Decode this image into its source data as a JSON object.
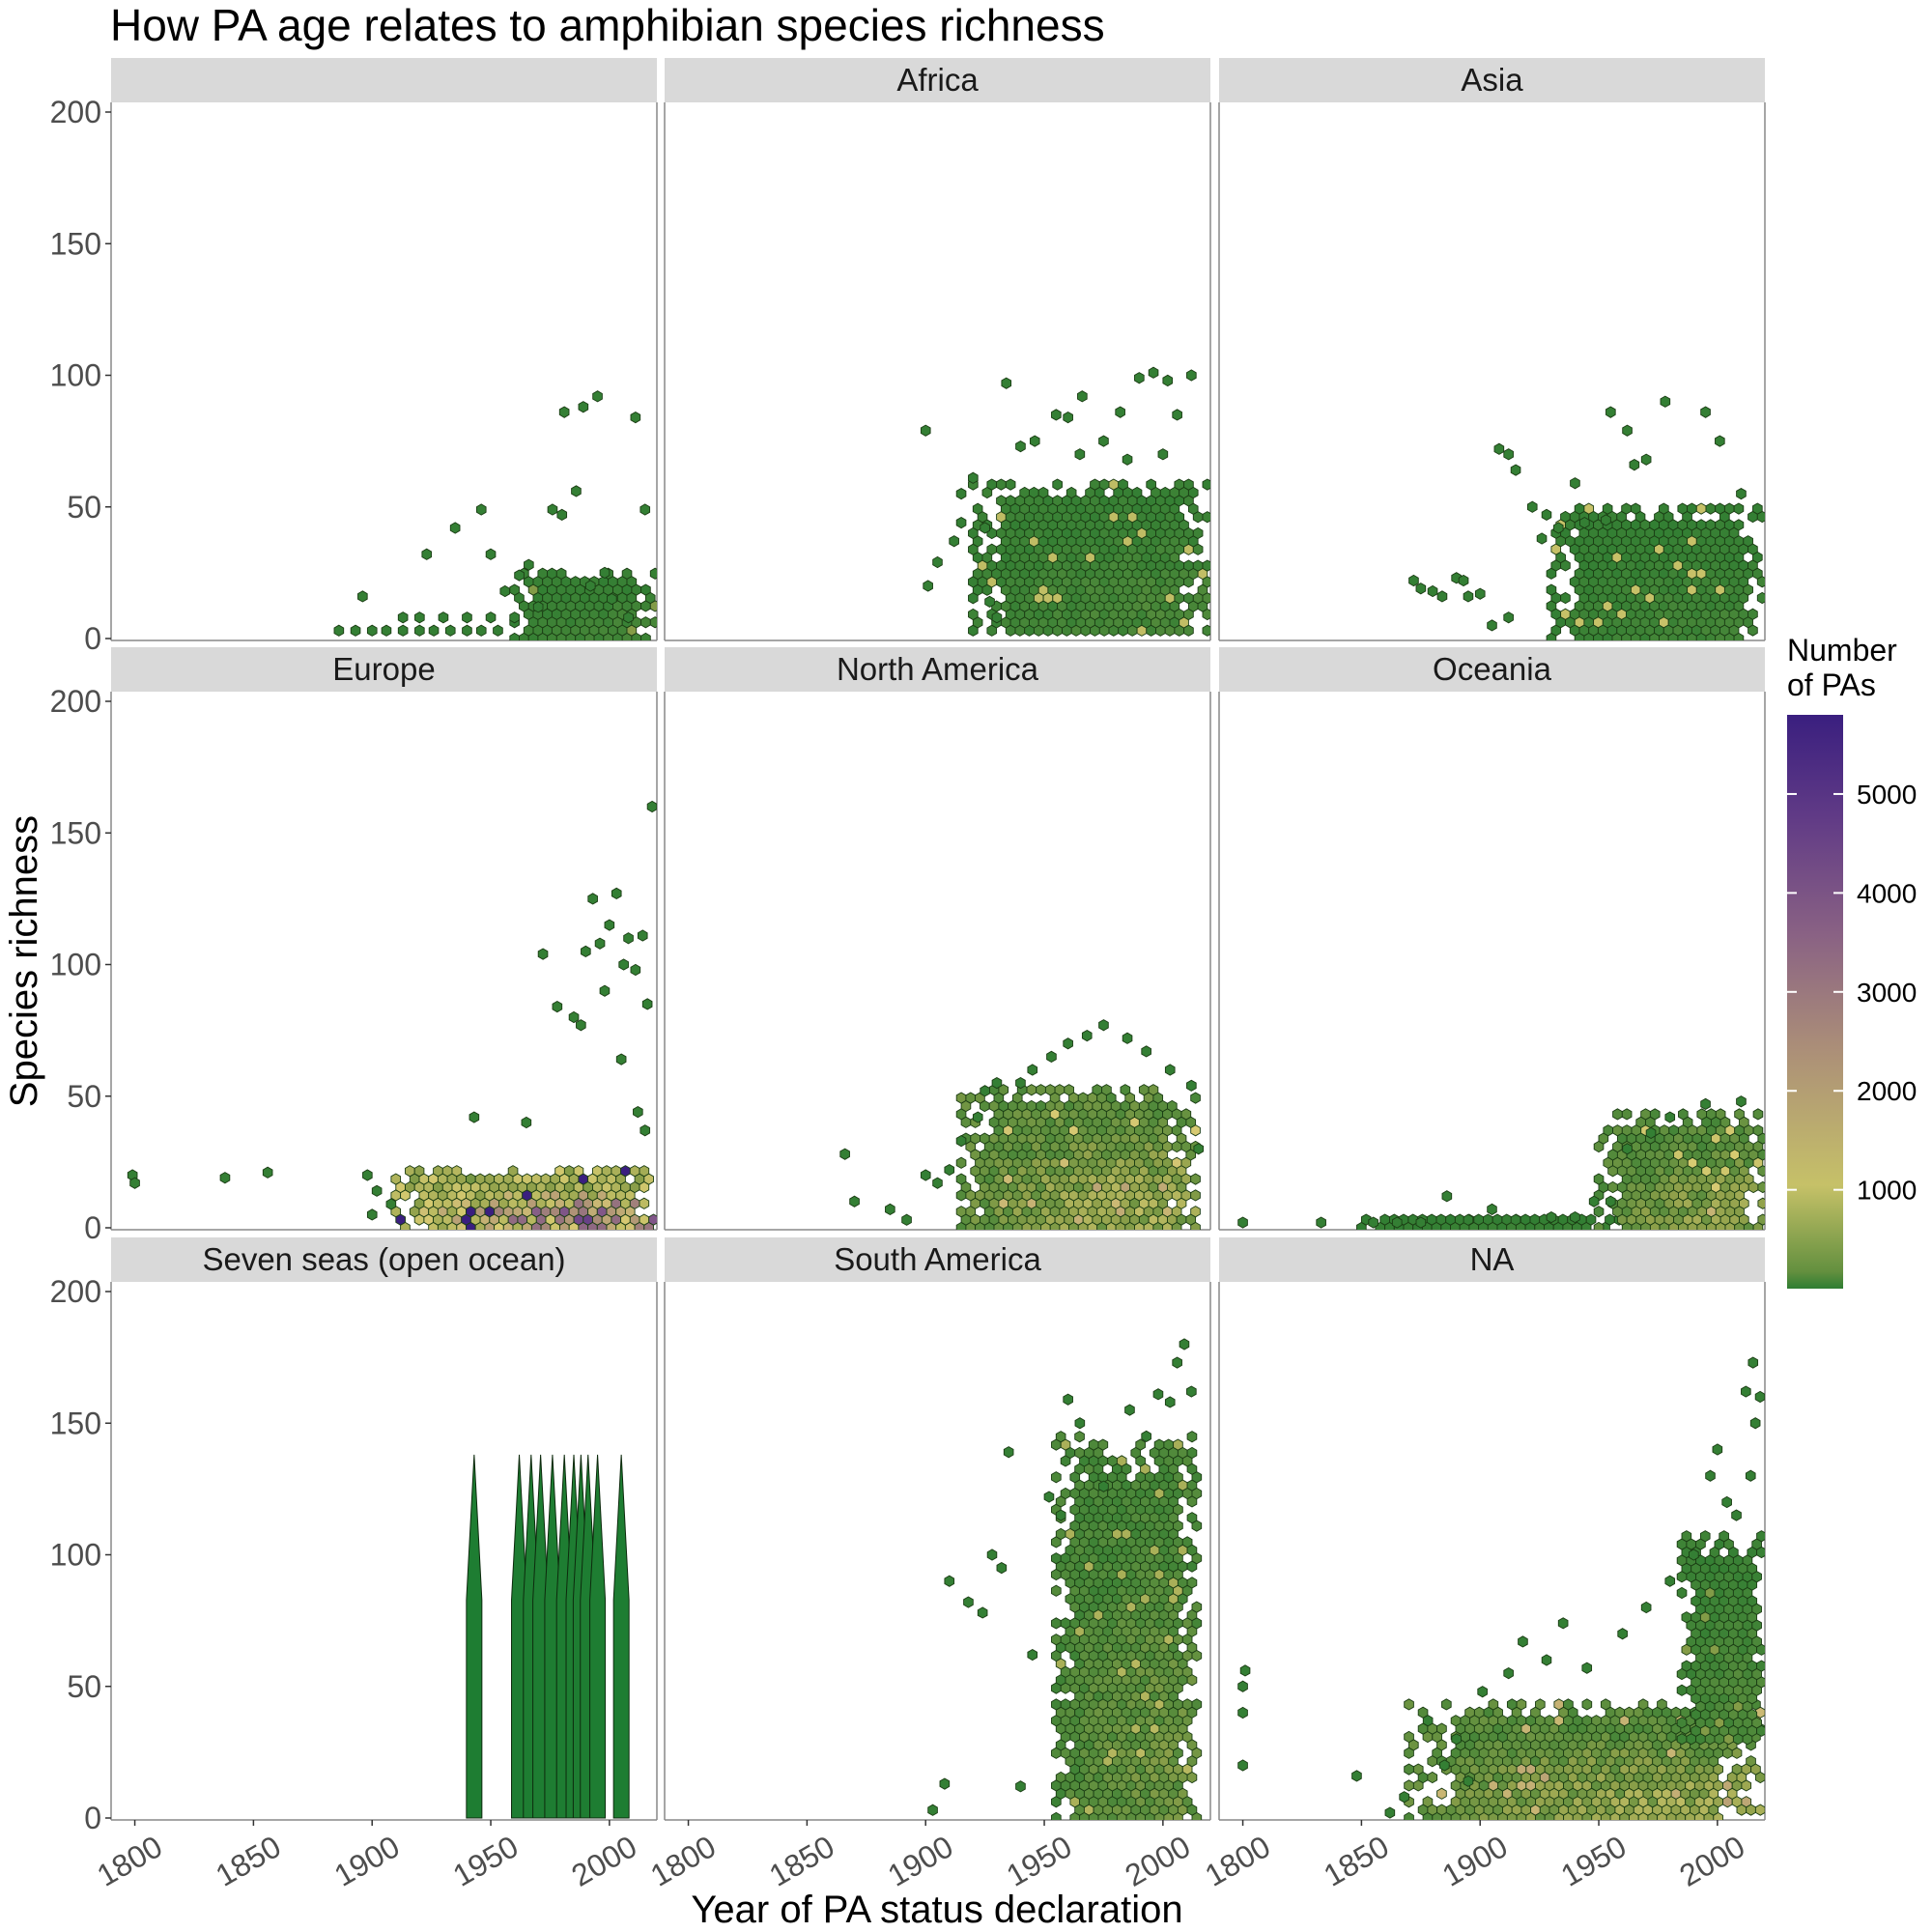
{
  "chart_data": {
    "type": "hexbin",
    "title": "How PA age relates to amphibian species richness",
    "xlabel": "Year of PA status declaration",
    "ylabel": "Species richness",
    "xlim": [
      1790,
      2020
    ],
    "ylim": [
      0,
      200
    ],
    "x_ticks": [
      1800,
      1850,
      1900,
      1950,
      2000
    ],
    "y_ticks": [
      0,
      50,
      100,
      150,
      200
    ],
    "legend": {
      "title_lines": [
        "Number",
        "of PAs"
      ],
      "ticks": [
        1000,
        2000,
        3000,
        4000,
        5000
      ],
      "range": [
        1,
        5800
      ],
      "colors": [
        "#2e7d32",
        "#8fa04a",
        "#d9cc72",
        "#a88a78",
        "#7b4f8a",
        "#3a1f7f"
      ]
    },
    "panels": [
      {
        "name": "",
        "points": [
          [
            1886,
            3,
            5
          ],
          [
            1893,
            3,
            5
          ],
          [
            1900,
            3,
            5
          ],
          [
            1906,
            3,
            5
          ],
          [
            1913,
            3,
            5
          ],
          [
            1920,
            3,
            5
          ],
          [
            1926,
            3,
            5
          ],
          [
            1933,
            3,
            5
          ],
          [
            1940,
            3,
            5
          ],
          [
            1946,
            3,
            5
          ],
          [
            1953,
            3,
            5
          ],
          [
            1913,
            8,
            5
          ],
          [
            1920,
            8,
            5
          ],
          [
            1930,
            8,
            5
          ],
          [
            1940,
            8,
            5
          ],
          [
            1950,
            8,
            5
          ],
          [
            1960,
            8,
            5
          ],
          [
            1896,
            16,
            5
          ],
          [
            1923,
            32,
            5
          ],
          [
            1935,
            42,
            5
          ],
          [
            1946,
            49,
            5
          ],
          [
            1950,
            32,
            5
          ],
          [
            1956,
            18,
            5
          ],
          [
            1962,
            24,
            5
          ],
          [
            1966,
            28,
            5
          ],
          [
            1970,
            12,
            5
          ],
          [
            1976,
            49,
            5
          ],
          [
            1980,
            47,
            5
          ],
          [
            1981,
            86,
            5
          ],
          [
            1986,
            56,
            5
          ],
          [
            1989,
            88,
            5
          ],
          [
            1995,
            92,
            5
          ],
          [
            2011,
            84,
            5
          ],
          [
            2015,
            49,
            5
          ],
          [
            2001,
            15,
            5
          ],
          [
            1998,
            25,
            5
          ],
          [
            1992,
            20,
            5
          ],
          [
            2008,
            8,
            5
          ]
        ],
        "dense": [
          {
            "x": [
              1960,
              2020
            ],
            "y": [
              0,
              25
            ],
            "core": 45,
            "max": 300
          }
        ]
      },
      {
        "name": "Africa",
        "points": [
          [
            1900,
            79,
            5
          ],
          [
            1901,
            20,
            5
          ],
          [
            1905,
            29,
            5
          ],
          [
            1915,
            55,
            5
          ],
          [
            1915,
            44,
            5
          ],
          [
            1912,
            37,
            5
          ],
          [
            1925,
            42,
            5
          ],
          [
            1927,
            14,
            5
          ],
          [
            1930,
            8,
            5
          ],
          [
            1934,
            97,
            5
          ],
          [
            1940,
            73,
            5
          ],
          [
            1946,
            75,
            5
          ],
          [
            1955,
            85,
            5
          ],
          [
            1960,
            84,
            5
          ],
          [
            1966,
            92,
            5
          ],
          [
            1975,
            75,
            5
          ],
          [
            1982,
            86,
            5
          ],
          [
            1990,
            99,
            5
          ],
          [
            1996,
            101,
            5
          ],
          [
            2002,
            98,
            5
          ],
          [
            2012,
            100,
            5
          ],
          [
            1920,
            61,
            5
          ],
          [
            2000,
            70,
            5
          ],
          [
            2006,
            85,
            5
          ],
          [
            1985,
            68,
            5
          ],
          [
            1965,
            70,
            5
          ]
        ],
        "dense": [
          {
            "x": [
              1920,
              2020
            ],
            "y": [
              3,
              60
            ],
            "core": 70,
            "max": 900
          }
        ]
      },
      {
        "name": "Asia",
        "points": [
          [
            1872,
            22,
            5
          ],
          [
            1875,
            19,
            5
          ],
          [
            1880,
            18,
            5
          ],
          [
            1884,
            16,
            5
          ],
          [
            1890,
            23,
            5
          ],
          [
            1893,
            22,
            5
          ],
          [
            1895,
            16,
            5
          ],
          [
            1900,
            17,
            5
          ],
          [
            1908,
            72,
            5
          ],
          [
            1912,
            70,
            5
          ],
          [
            1915,
            64,
            5
          ],
          [
            1922,
            50,
            5
          ],
          [
            1926,
            38,
            5
          ],
          [
            1928,
            47,
            5
          ],
          [
            1933,
            42,
            5
          ],
          [
            1940,
            59,
            5
          ],
          [
            1944,
            44,
            5
          ],
          [
            1953,
            45,
            5
          ],
          [
            1955,
            86,
            5
          ],
          [
            1962,
            79,
            5
          ],
          [
            1978,
            90,
            5
          ],
          [
            1995,
            86,
            5
          ],
          [
            2001,
            75,
            5
          ],
          [
            1965,
            66,
            5
          ],
          [
            1970,
            68,
            5
          ],
          [
            2010,
            55,
            5
          ],
          [
            1905,
            5,
            5
          ],
          [
            1912,
            8,
            5
          ]
        ],
        "dense": [
          {
            "x": [
              1930,
              2020
            ],
            "y": [
              0,
              52
            ],
            "core": 40,
            "max": 1000
          }
        ]
      },
      {
        "name": "Europe",
        "points": [
          [
            1799,
            20,
            5
          ],
          [
            1800,
            17,
            5
          ],
          [
            1838,
            19,
            5
          ],
          [
            1856,
            21,
            5
          ],
          [
            1898,
            20,
            5
          ],
          [
            1900,
            5,
            5
          ],
          [
            1902,
            14,
            5
          ],
          [
            1908,
            9,
            5
          ],
          [
            1943,
            42,
            5
          ],
          [
            1965,
            40,
            5
          ],
          [
            1972,
            104,
            5
          ],
          [
            1978,
            84,
            5
          ],
          [
            1985,
            80,
            5
          ],
          [
            1988,
            77,
            5
          ],
          [
            1990,
            105,
            5
          ],
          [
            1993,
            125,
            5
          ],
          [
            1996,
            108,
            5
          ],
          [
            2000,
            115,
            5
          ],
          [
            2003,
            127,
            5
          ],
          [
            2008,
            110,
            5
          ],
          [
            2011,
            98,
            5
          ],
          [
            2014,
            111,
            5
          ],
          [
            2016,
            85,
            5
          ],
          [
            2018,
            160,
            5
          ],
          [
            2012,
            44,
            5
          ],
          [
            2015,
            37,
            5
          ],
          [
            2005,
            64,
            5
          ],
          [
            1998,
            90,
            5
          ],
          [
            2006,
            100,
            5
          ]
        ],
        "dense": [
          {
            "x": [
              1910,
              2020
            ],
            "y": [
              0,
              22
            ],
            "core": 4000,
            "max": 5800
          }
        ]
      },
      {
        "name": "North America",
        "points": [
          [
            1866,
            28,
            5
          ],
          [
            1870,
            10,
            5
          ],
          [
            1885,
            7,
            5
          ],
          [
            1892,
            3,
            5
          ],
          [
            1900,
            20,
            5
          ],
          [
            1905,
            17,
            5
          ],
          [
            1910,
            22,
            5
          ],
          [
            1915,
            33,
            5
          ],
          [
            1922,
            42,
            5
          ],
          [
            1925,
            52,
            5
          ],
          [
            1930,
            55,
            5
          ],
          [
            1940,
            55,
            5
          ],
          [
            1945,
            60,
            5
          ],
          [
            1953,
            65,
            5
          ],
          [
            1960,
            70,
            5
          ],
          [
            1968,
            73,
            5
          ],
          [
            1975,
            77,
            5
          ],
          [
            1985,
            72,
            5
          ],
          [
            1993,
            67,
            5
          ],
          [
            2003,
            60,
            5
          ],
          [
            2012,
            54,
            5
          ],
          [
            2015,
            30,
            5
          ]
        ],
        "dense": [
          {
            "x": [
              1915,
              2015
            ],
            "y": [
              0,
              55
            ],
            "core": 800,
            "max": 1200
          }
        ]
      },
      {
        "name": "Oceania",
        "points": [
          [
            1800,
            2,
            5
          ],
          [
            1833,
            2,
            5
          ],
          [
            1855,
            2,
            5
          ],
          [
            1865,
            2,
            5
          ],
          [
            1875,
            2,
            5
          ],
          [
            1886,
            12,
            5
          ],
          [
            1895,
            3,
            5
          ],
          [
            1905,
            7,
            5
          ],
          [
            1915,
            3,
            5
          ],
          [
            1930,
            4,
            5
          ],
          [
            1940,
            4,
            5
          ],
          [
            1948,
            10,
            5
          ],
          [
            1955,
            10,
            5
          ],
          [
            1962,
            30,
            5
          ],
          [
            1972,
            36,
            5
          ],
          [
            1980,
            42,
            5
          ],
          [
            1995,
            47,
            5
          ],
          [
            2010,
            48,
            5
          ]
        ],
        "dense": [
          {
            "x": [
              1850,
              1960
            ],
            "y": [
              0,
              5
            ],
            "core": 20,
            "max": 60
          },
          {
            "x": [
              1950,
              2020
            ],
            "y": [
              0,
              45
            ],
            "core": 600,
            "max": 1000
          }
        ]
      },
      {
        "name": "Seven seas (open ocean)",
        "spikes": [
          1943,
          1962,
          1967,
          1971,
          1976,
          1981,
          1985,
          1988,
          1991,
          1995,
          2005
        ],
        "spike_top": 138
      },
      {
        "name": "South America",
        "points": [
          [
            1903,
            3,
            5
          ],
          [
            1908,
            13,
            5
          ],
          [
            1910,
            90,
            5
          ],
          [
            1918,
            82,
            5
          ],
          [
            1924,
            78,
            5
          ],
          [
            1928,
            100,
            5
          ],
          [
            1932,
            95,
            5
          ],
          [
            1935,
            139,
            5
          ],
          [
            1940,
            12,
            5
          ],
          [
            1945,
            62,
            5
          ],
          [
            1952,
            122,
            5
          ],
          [
            1957,
            115,
            5
          ],
          [
            1960,
            159,
            5
          ],
          [
            1965,
            150,
            5
          ],
          [
            1975,
            126,
            5
          ],
          [
            1986,
            155,
            5
          ],
          [
            1998,
            161,
            5
          ],
          [
            2003,
            158,
            5
          ],
          [
            2006,
            173,
            5
          ],
          [
            2009,
            180,
            5
          ],
          [
            2012,
            162,
            5
          ],
          [
            1993,
            145,
            5
          ]
        ],
        "dense": [
          {
            "x": [
              1955,
              2015
            ],
            "y": [
              0,
              145
            ],
            "core": 300,
            "max": 600
          }
        ]
      },
      {
        "name": "NA",
        "points": [
          [
            1800,
            20,
            5
          ],
          [
            1800,
            40,
            5
          ],
          [
            1800,
            50,
            5
          ],
          [
            1801,
            56,
            5
          ],
          [
            1848,
            16,
            5
          ],
          [
            1862,
            2,
            5
          ],
          [
            1868,
            8,
            5
          ],
          [
            1878,
            37,
            5
          ],
          [
            1885,
            20,
            5
          ],
          [
            1890,
            30,
            5
          ],
          [
            1895,
            14,
            5
          ],
          [
            1901,
            48,
            5
          ],
          [
            1912,
            55,
            5
          ],
          [
            1918,
            67,
            5
          ],
          [
            1928,
            60,
            5
          ],
          [
            1935,
            74,
            5
          ],
          [
            1945,
            57,
            5
          ],
          [
            1960,
            70,
            5
          ],
          [
            1970,
            80,
            5
          ],
          [
            1980,
            90,
            5
          ],
          [
            1990,
            100,
            5
          ],
          [
            1997,
            130,
            5
          ],
          [
            2000,
            140,
            5
          ],
          [
            2004,
            120,
            5
          ],
          [
            2008,
            115,
            5
          ],
          [
            2012,
            162,
            5
          ],
          [
            2015,
            173,
            5
          ],
          [
            2018,
            160,
            5
          ],
          [
            2016,
            150,
            5
          ],
          [
            2014,
            130,
            5
          ]
        ],
        "dense": [
          {
            "x": [
              1870,
              2020
            ],
            "y": [
              0,
              45
            ],
            "core": 700,
            "max": 1500
          },
          {
            "x": [
              1985,
              2020
            ],
            "y": [
              30,
              110
            ],
            "core": 100,
            "max": 300
          }
        ]
      }
    ]
  }
}
